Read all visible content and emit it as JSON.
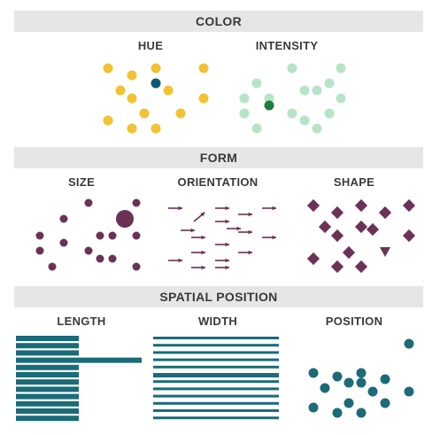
{
  "colors": {
    "band_bg": "#e6e6e6",
    "hue_yellow": "#f1c232",
    "hue_accent": "#0b5a7a",
    "intensity_light": "#b7e4c7",
    "intensity_dark": "#1a7f3c",
    "form_purple": "#6b3156",
    "position_teal": "#1b6b78"
  },
  "sections": {
    "color": {
      "title": "COLOR",
      "panels": {
        "hue": "HUE",
        "intensity": "INTENSITY"
      }
    },
    "form": {
      "title": "FORM",
      "panels": {
        "size": "SIZE",
        "orientation": "ORIENTATION",
        "shape": "SHAPE"
      }
    },
    "spatial": {
      "title": "SPATIAL POSITION",
      "panels": {
        "length": "LENGTH",
        "width": "WIDTH",
        "position": "POSITION"
      }
    }
  },
  "marks": {
    "hue_dots": 16,
    "intensity_dots": 16,
    "size_dots": 16,
    "orientation_arrows": 20,
    "shape_marks": 16,
    "length_bars": 12,
    "width_lines": 12,
    "position_dots": 16
  }
}
